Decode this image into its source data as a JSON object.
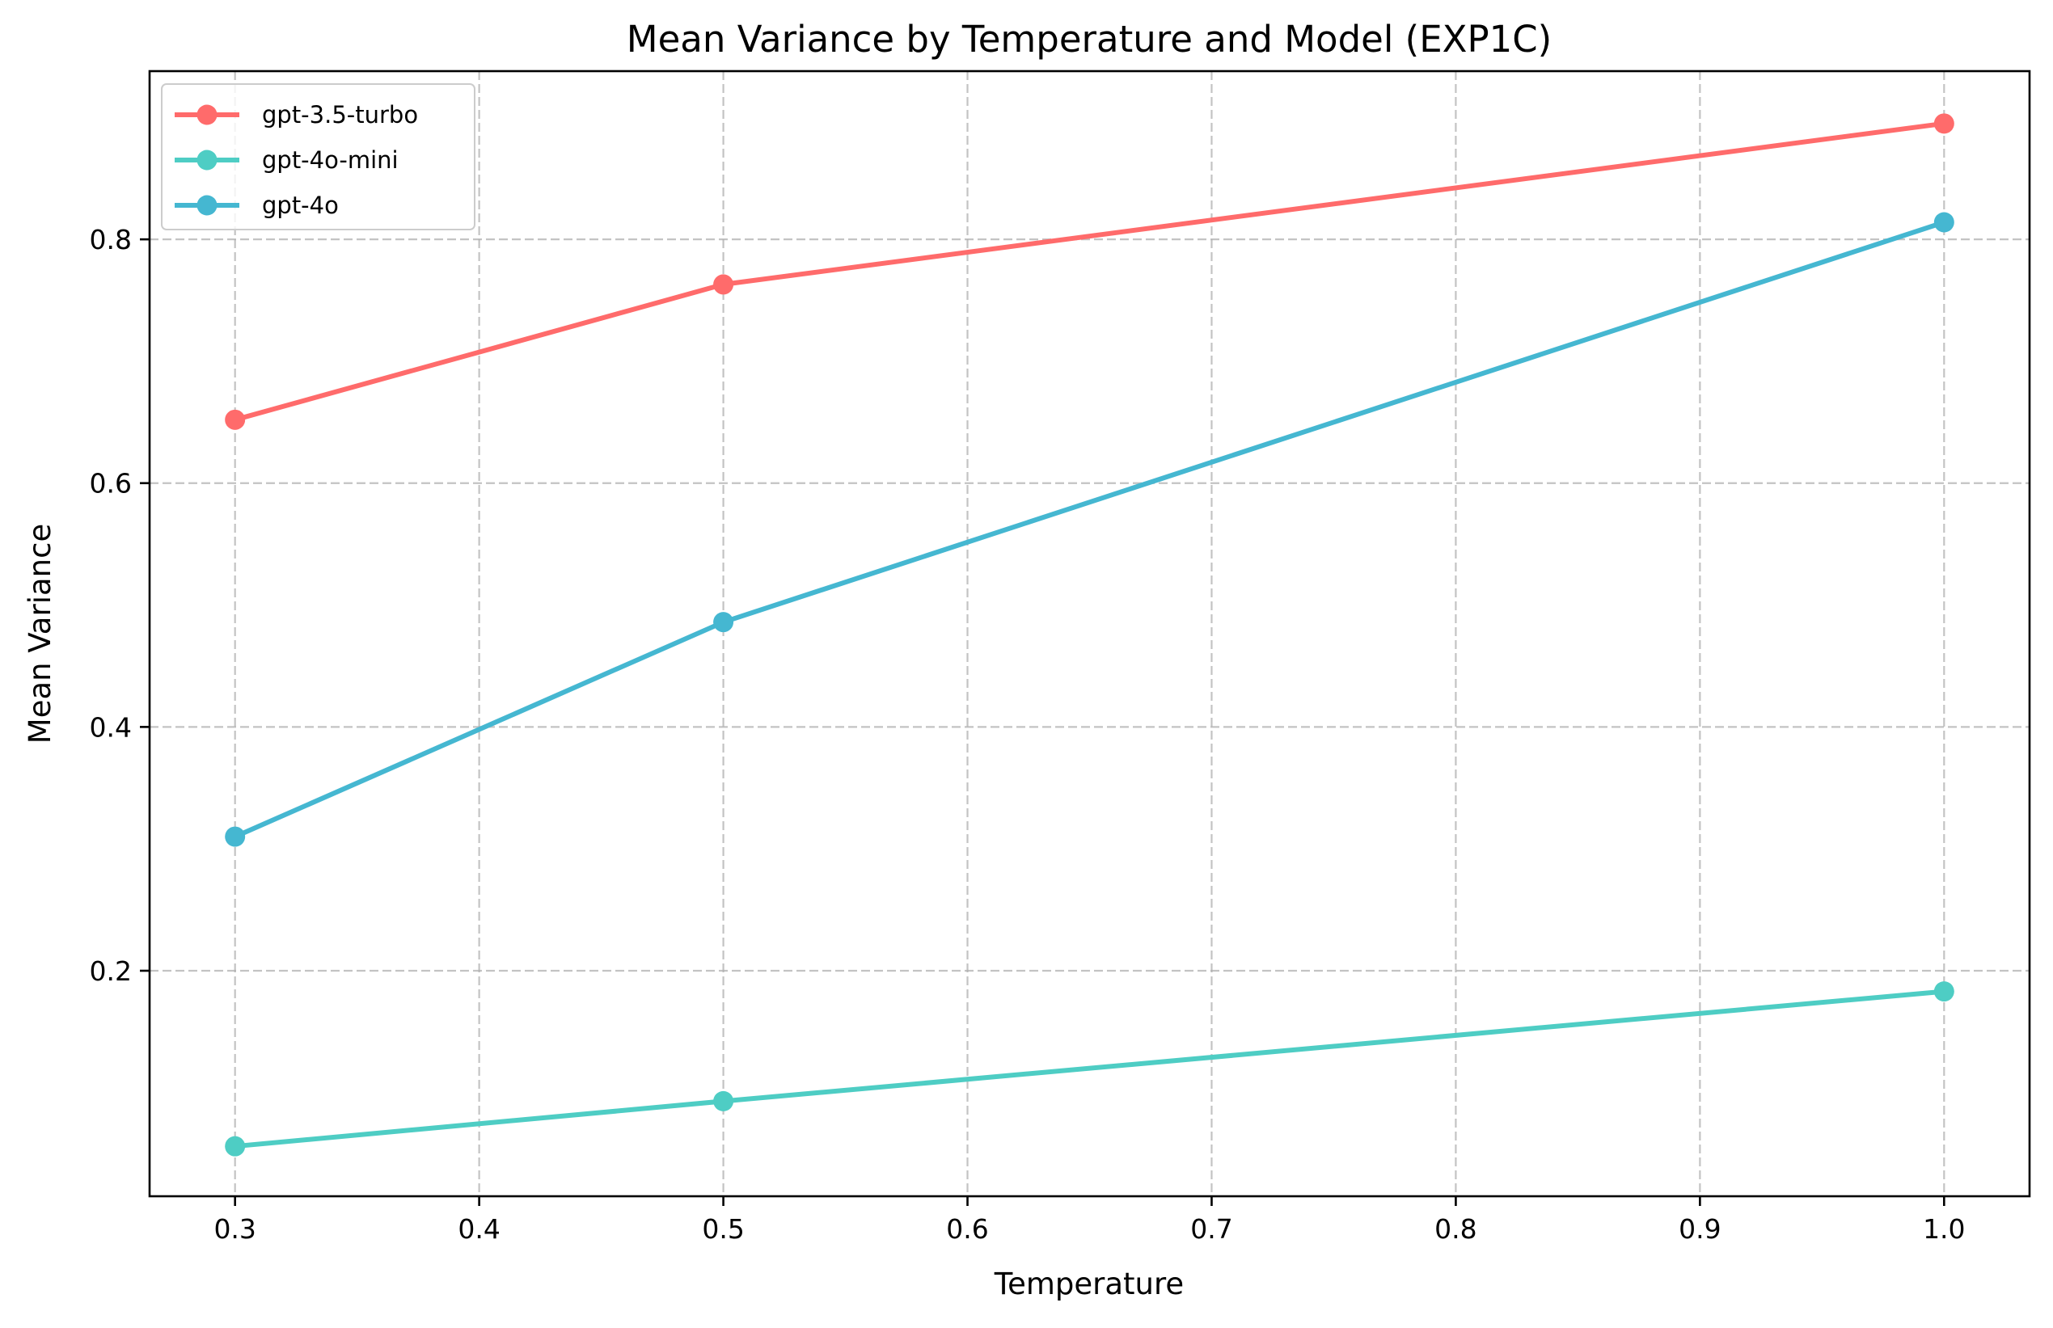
{
  "chart_data": {
    "type": "line",
    "title": "Mean Variance by Temperature and Model (EXP1C)",
    "xlabel": "Temperature",
    "ylabel": "Mean Variance",
    "xlim": [
      0.265,
      1.035
    ],
    "ylim": [
      0.015,
      0.938
    ],
    "xticks": [
      0.3,
      0.4,
      0.5,
      0.6,
      0.7,
      0.8,
      0.9,
      1.0
    ],
    "xtick_labels": [
      "0.3",
      "0.4",
      "0.5",
      "0.6",
      "0.7",
      "0.8",
      "0.9",
      "1.0"
    ],
    "yticks": [
      0.2,
      0.4,
      0.6,
      0.8
    ],
    "ytick_labels": [
      "0.2",
      "0.4",
      "0.6",
      "0.8"
    ],
    "grid": true,
    "legend_position": "top-left",
    "x": [
      0.3,
      0.5,
      1.0
    ],
    "series": [
      {
        "name": "gpt-3.5-turbo",
        "color": "#ff6b6b",
        "marker": "circle",
        "values": [
          0.652,
          0.763,
          0.895
        ]
      },
      {
        "name": "gpt-4o-mini",
        "color": "#4ecdc4",
        "marker": "circle",
        "values": [
          0.056,
          0.093,
          0.183
        ]
      },
      {
        "name": "gpt-4o",
        "color": "#45b7d1",
        "marker": "circle",
        "values": [
          0.31,
          0.486,
          0.814
        ]
      }
    ]
  }
}
